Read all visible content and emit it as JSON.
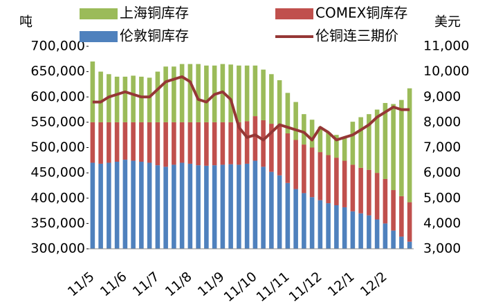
{
  "chart_data": {
    "type": "bar",
    "stacked": true,
    "y_axis_label": "吨",
    "y2_axis_label": "美元",
    "categories": [
      "11/5",
      null,
      null,
      null,
      "11/6",
      null,
      null,
      null,
      "11/7",
      null,
      null,
      null,
      "11/8",
      null,
      null,
      null,
      "11/9",
      null,
      null,
      null,
      "11/10",
      null,
      null,
      null,
      "11/11",
      null,
      null,
      null,
      "11/12",
      null,
      null,
      null,
      "12/1",
      null,
      null,
      null,
      "12/2",
      null,
      null,
      null
    ],
    "series": [
      {
        "name": "伦敦铜库存",
        "color": "#4f81bd",
        "values": [
          470000,
          468000,
          470000,
          472000,
          476000,
          474000,
          472000,
          470000,
          465000,
          462000,
          466000,
          470000,
          468000,
          465000,
          464000,
          465000,
          466000,
          467000,
          466000,
          468000,
          474000,
          462000,
          452000,
          445000,
          430000,
          418000,
          410000,
          402000,
          396000,
          390000,
          386000,
          382000,
          374000,
          370000,
          366000,
          358000,
          350000,
          336000,
          324000,
          314000
        ]
      },
      {
        "name": "COMEX铜库存",
        "color": "#c0504d",
        "values": [
          80000,
          82000,
          80000,
          78000,
          74000,
          76000,
          78000,
          80000,
          85000,
          88000,
          84000,
          80000,
          82000,
          85000,
          86000,
          85000,
          84000,
          83000,
          84000,
          84000,
          88000,
          92000,
          95000,
          98000,
          98000,
          97000,
          96000,
          98000,
          95000,
          95000,
          94000,
          92000,
          92000,
          90000,
          90000,
          92000,
          88000,
          80000,
          80000,
          78000
        ]
      },
      {
        "name": "上海铜库存",
        "color": "#9bbb59",
        "values": [
          120000,
          100000,
          95000,
          90000,
          90000,
          92000,
          90000,
          88000,
          100000,
          110000,
          110000,
          115000,
          115000,
          115000,
          112000,
          112000,
          115000,
          114000,
          112000,
          110000,
          100000,
          100000,
          98000,
          90000,
          80000,
          75000,
          60000,
          55000,
          50000,
          45000,
          45000,
          45000,
          85000,
          100000,
          110000,
          125000,
          150000,
          170000,
          190000,
          225000
        ]
      },
      {
        "name": "伦铜连三期价",
        "color": "#953735",
        "type": "line",
        "axis": "y2",
        "values": [
          8800,
          8800,
          9000,
          9100,
          9200,
          9100,
          9000,
          9000,
          9300,
          9600,
          9700,
          9800,
          9600,
          8900,
          8800,
          9100,
          9200,
          8900,
          7800,
          7400,
          7500,
          7300,
          7600,
          7900,
          7800,
          7700,
          7600,
          7300,
          7800,
          7600,
          7300,
          7400,
          7500,
          7700,
          7900,
          8200,
          8400,
          8600,
          8500,
          8500
        ]
      }
    ],
    "ylim": [
      300000,
      700000
    ],
    "yticks": [
      {
        "value": 300000,
        "label": "300,000"
      },
      {
        "value": 350000,
        "label": "350,000"
      },
      {
        "value": 400000,
        "label": "400,000"
      },
      {
        "value": 450000,
        "label": "450,000"
      },
      {
        "value": 500000,
        "label": "500,000"
      },
      {
        "value": 550000,
        "label": "550,000"
      },
      {
        "value": 600000,
        "label": "600,000"
      },
      {
        "value": 650000,
        "label": "650,000"
      },
      {
        "value": 700000,
        "label": "700,000"
      }
    ],
    "y2lim": [
      3000,
      11000
    ],
    "y2ticks": [
      {
        "value": 3000,
        "label": "3,000"
      },
      {
        "value": 4000,
        "label": "4,000"
      },
      {
        "value": 5000,
        "label": "5,000"
      },
      {
        "value": 6000,
        "label": "6,000"
      },
      {
        "value": 7000,
        "label": "7,000"
      },
      {
        "value": 8000,
        "label": "8,000"
      },
      {
        "value": 9000,
        "label": "9,000"
      },
      {
        "value": 10000,
        "label": "10,000"
      },
      {
        "value": 11000,
        "label": "11,000"
      }
    ],
    "grid": false
  }
}
